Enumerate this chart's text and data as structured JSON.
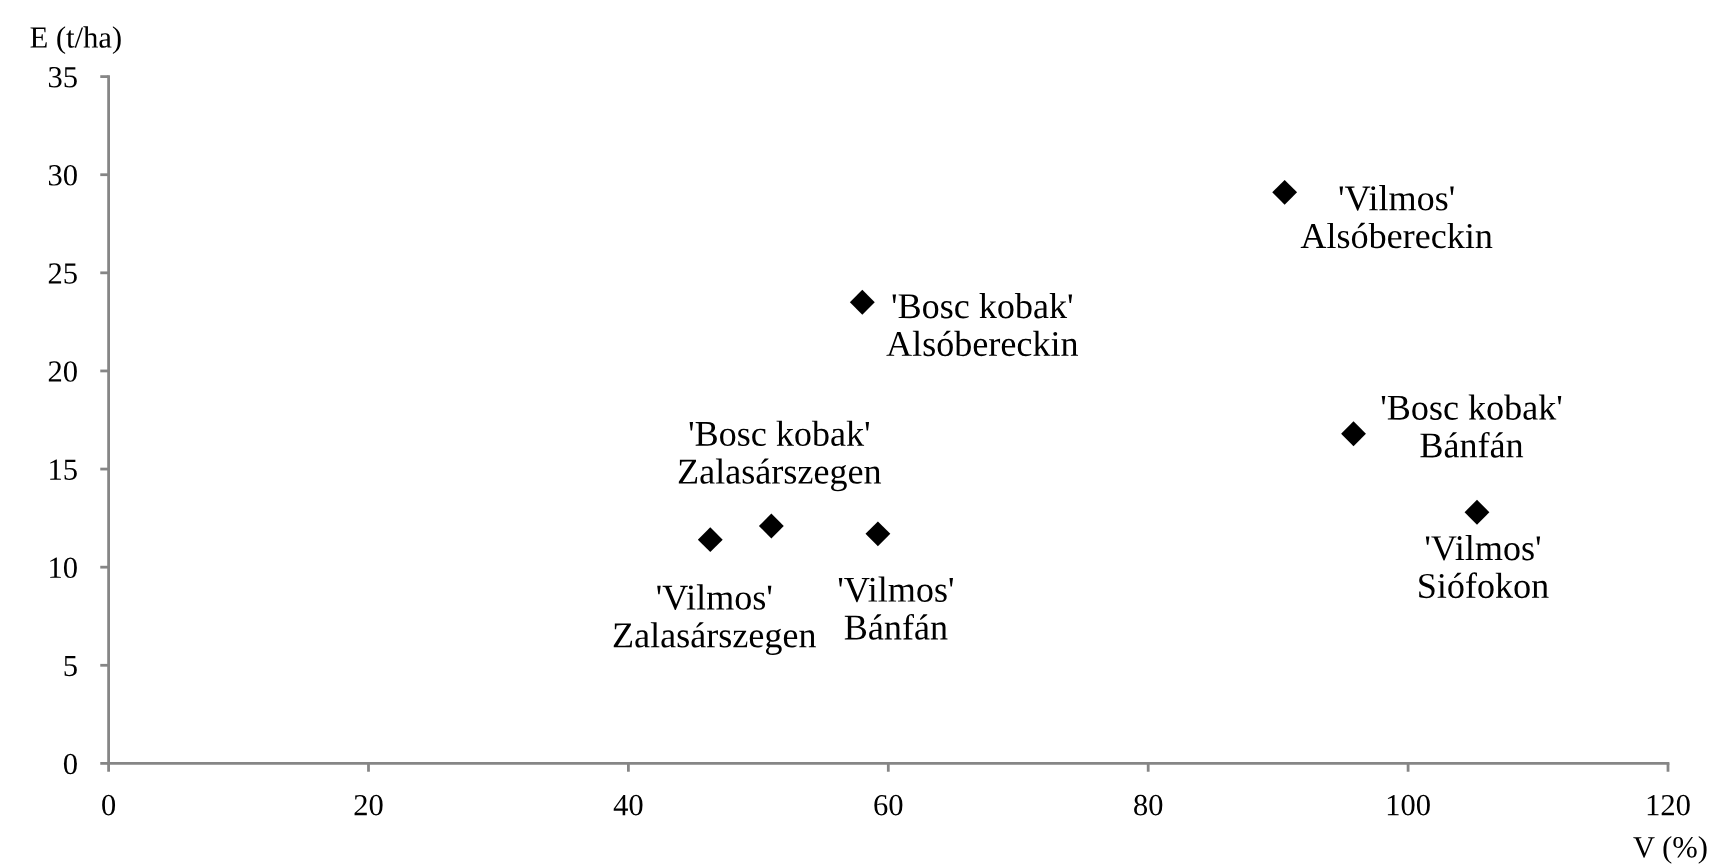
{
  "chart_data": {
    "type": "scatter",
    "xlabel": "V (%)",
    "ylabel": "E (t/ha)",
    "x": [
      46.3,
      51.0,
      59.2,
      58.0,
      90.5,
      95.8,
      105.3
    ],
    "series": [
      {
        "color": "#000000",
        "values": [
          11.4,
          12.1,
          11.7,
          23.5,
          29.1,
          16.8,
          12.8
        ]
      }
    ],
    "marker": "diamond",
    "grid": false,
    "xlim": [
      0,
      120
    ],
    "xticks": [
      0,
      20,
      40,
      60,
      80,
      100,
      120
    ],
    "ylim": [
      0,
      35
    ],
    "yticks": [
      0,
      5,
      10,
      15,
      20,
      25,
      30,
      35
    ],
    "annotations": [
      {
        "text": "'Vilmos'\nZalasárszegen",
        "x": 46.3,
        "y": 11.4
      },
      {
        "text": "'Bosc kobak'\nZalasárszegen",
        "x": 51.0,
        "y": 12.1
      },
      {
        "text": "'Vilmos'\nBánfán",
        "x": 59.2,
        "y": 11.7
      },
      {
        "text": "'Bosc kobak'\nAlsóbereckin",
        "x": 58.0,
        "y": 23.5
      },
      {
        "text": "'Vilmos'\nAlsóbereckin",
        "x": 90.5,
        "y": 29.1
      },
      {
        "text": "'Bosc kobak'\nBánfán",
        "x": 95.8,
        "y": 16.8
      },
      {
        "text": "'Vilmos'\nSiófokon",
        "x": 105.3,
        "y": 12.8
      }
    ]
  }
}
